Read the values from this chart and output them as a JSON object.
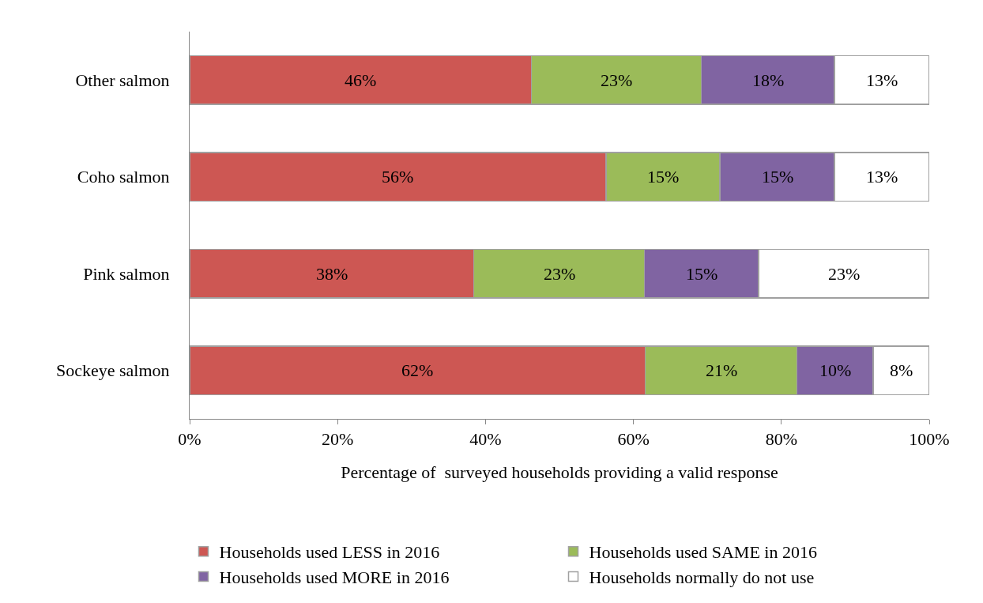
{
  "chart_data": {
    "type": "bar",
    "orientation": "horizontal",
    "stacked": true,
    "categories": [
      "Other salmon",
      "Coho salmon",
      "Pink salmon",
      "Sockeye salmon"
    ],
    "series": [
      {
        "name": "Households used LESS in 2016",
        "color": "#cd5753",
        "values": [
          46.2,
          56.3,
          38.4,
          61.6
        ],
        "value_labels": [
          "46%",
          "56%",
          "38%",
          "62%"
        ]
      },
      {
        "name": "Households used SAME in 2016",
        "color": "#9bbb59",
        "values": [
          23,
          15.4,
          23.1,
          20.5
        ],
        "value_labels": [
          "23%",
          "15%",
          "23%",
          "21%"
        ]
      },
      {
        "name": "Households used MORE in 2016",
        "color": "#8064a2",
        "values": [
          18,
          15.5,
          15.4,
          10.3
        ],
        "value_labels": [
          "18%",
          "15%",
          "15%",
          "10%"
        ]
      },
      {
        "name": "Households normally do not use",
        "color": "#ffffff",
        "values": [
          12.8,
          12.8,
          23.1,
          7.6
        ],
        "value_labels": [
          "13%",
          "13%",
          "23%",
          "8%"
        ]
      }
    ],
    "xlim": [
      0,
      100
    ],
    "xticks": [
      {
        "value": 0,
        "label": "0%"
      },
      {
        "value": 20,
        "label": "20%"
      },
      {
        "value": 40,
        "label": "40%"
      },
      {
        "value": 60,
        "label": "60%"
      },
      {
        "value": 80,
        "label": "80%"
      },
      {
        "value": 100,
        "label": "100%"
      }
    ],
    "xlabel": "Percentage of  surveyed households providing a valid response",
    "grid": false,
    "legend": "bottom"
  }
}
